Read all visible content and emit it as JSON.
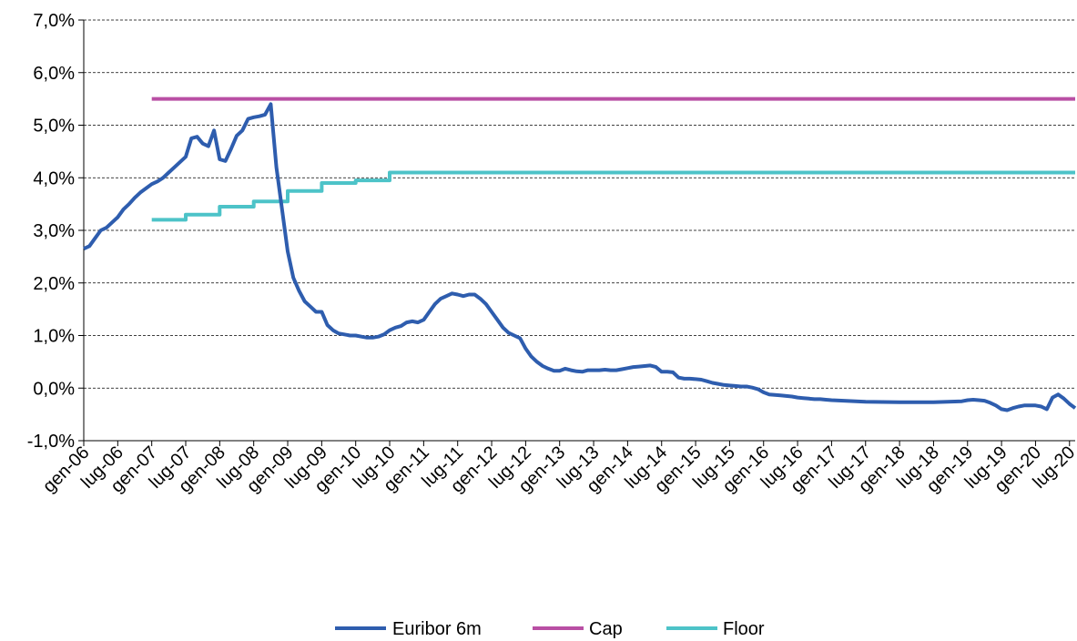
{
  "chart_data": {
    "type": "line",
    "title": "",
    "xlabel": "",
    "ylabel": "",
    "ylim": [
      -0.01,
      0.07
    ],
    "yticks": [
      {
        "value": -0.01,
        "label": "-1,0%"
      },
      {
        "value": 0.0,
        "label": "0,0%"
      },
      {
        "value": 0.01,
        "label": "1,0%"
      },
      {
        "value": 0.02,
        "label": "2,0%"
      },
      {
        "value": 0.03,
        "label": "3,0%"
      },
      {
        "value": 0.04,
        "label": "4,0%"
      },
      {
        "value": 0.05,
        "label": "5,0%"
      },
      {
        "value": 0.06,
        "label": "6,0%"
      },
      {
        "value": 0.07,
        "label": "7,0%"
      }
    ],
    "xlim": [
      "2006-01",
      "2020-08"
    ],
    "xticks": [
      {
        "value": "2006-01",
        "label": "gen-06"
      },
      {
        "value": "2006-07",
        "label": "lug-06"
      },
      {
        "value": "2007-01",
        "label": "gen-07"
      },
      {
        "value": "2007-07",
        "label": "lug-07"
      },
      {
        "value": "2008-01",
        "label": "gen-08"
      },
      {
        "value": "2008-07",
        "label": "lug-08"
      },
      {
        "value": "2009-01",
        "label": "gen-09"
      },
      {
        "value": "2009-07",
        "label": "lug-09"
      },
      {
        "value": "2010-01",
        "label": "gen-10"
      },
      {
        "value": "2010-07",
        "label": "lug-10"
      },
      {
        "value": "2011-01",
        "label": "gen-11"
      },
      {
        "value": "2011-07",
        "label": "lug-11"
      },
      {
        "value": "2012-01",
        "label": "gen-12"
      },
      {
        "value": "2012-07",
        "label": "lug-12"
      },
      {
        "value": "2013-01",
        "label": "gen-13"
      },
      {
        "value": "2013-07",
        "label": "lug-13"
      },
      {
        "value": "2014-01",
        "label": "gen-14"
      },
      {
        "value": "2014-07",
        "label": "lug-14"
      },
      {
        "value": "2015-01",
        "label": "gen-15"
      },
      {
        "value": "2015-07",
        "label": "lug-15"
      },
      {
        "value": "2016-01",
        "label": "gen-16"
      },
      {
        "value": "2016-07",
        "label": "lug-16"
      },
      {
        "value": "2017-01",
        "label": "gen-17"
      },
      {
        "value": "2017-07",
        "label": "lug-17"
      },
      {
        "value": "2018-01",
        "label": "gen-18"
      },
      {
        "value": "2018-07",
        "label": "lug-18"
      },
      {
        "value": "2019-01",
        "label": "gen-19"
      },
      {
        "value": "2019-07",
        "label": "lug-19"
      },
      {
        "value": "2020-01",
        "label": "gen-20"
      },
      {
        "value": "2020-07",
        "label": "lug-20"
      }
    ],
    "grid": {
      "horizontal": true,
      "style": "dashed"
    },
    "legend": {
      "position": "bottom-center"
    },
    "series": [
      {
        "name": "Euribor 6m",
        "color": "#2E5DAE",
        "points": [
          [
            "2006-01",
            0.0265
          ],
          [
            "2006-02",
            0.027
          ],
          [
            "2006-03",
            0.0285
          ],
          [
            "2006-04",
            0.03
          ],
          [
            "2006-05",
            0.0305
          ],
          [
            "2006-06",
            0.0315
          ],
          [
            "2006-07",
            0.0325
          ],
          [
            "2006-08",
            0.034
          ],
          [
            "2006-09",
            0.035
          ],
          [
            "2006-10",
            0.0362
          ],
          [
            "2006-11",
            0.0372
          ],
          [
            "2006-12",
            0.038
          ],
          [
            "2007-01",
            0.0388
          ],
          [
            "2007-02",
            0.0393
          ],
          [
            "2007-03",
            0.04
          ],
          [
            "2007-04",
            0.041
          ],
          [
            "2007-05",
            0.042
          ],
          [
            "2007-06",
            0.043
          ],
          [
            "2007-07",
            0.044
          ],
          [
            "2007-08",
            0.0475
          ],
          [
            "2007-09",
            0.0478
          ],
          [
            "2007-10",
            0.0465
          ],
          [
            "2007-11",
            0.046
          ],
          [
            "2007-12",
            0.049
          ],
          [
            "2008-01",
            0.0435
          ],
          [
            "2008-02",
            0.0432
          ],
          [
            "2008-03",
            0.0455
          ],
          [
            "2008-04",
            0.048
          ],
          [
            "2008-05",
            0.049
          ],
          [
            "2008-06",
            0.0512
          ],
          [
            "2008-07",
            0.0515
          ],
          [
            "2008-08",
            0.0517
          ],
          [
            "2008-09",
            0.052
          ],
          [
            "2008-10",
            0.054
          ],
          [
            "2008-11",
            0.042
          ],
          [
            "2008-12",
            0.034
          ],
          [
            "2009-01",
            0.026
          ],
          [
            "2009-02",
            0.021
          ],
          [
            "2009-03",
            0.0185
          ],
          [
            "2009-04",
            0.0165
          ],
          [
            "2009-05",
            0.0155
          ],
          [
            "2009-06",
            0.0145
          ],
          [
            "2009-07",
            0.0145
          ],
          [
            "2009-08",
            0.012
          ],
          [
            "2009-09",
            0.011
          ],
          [
            "2009-10",
            0.0104
          ],
          [
            "2009-11",
            0.0102
          ],
          [
            "2009-12",
            0.01
          ],
          [
            "2010-01",
            0.01
          ],
          [
            "2010-02",
            0.0098
          ],
          [
            "2010-03",
            0.0096
          ],
          [
            "2010-04",
            0.0096
          ],
          [
            "2010-05",
            0.0098
          ],
          [
            "2010-06",
            0.0102
          ],
          [
            "2010-07",
            0.011
          ],
          [
            "2010-08",
            0.0115
          ],
          [
            "2010-09",
            0.0118
          ],
          [
            "2010-10",
            0.0125
          ],
          [
            "2010-11",
            0.0127
          ],
          [
            "2010-12",
            0.0125
          ],
          [
            "2011-01",
            0.013
          ],
          [
            "2011-02",
            0.0145
          ],
          [
            "2011-03",
            0.016
          ],
          [
            "2011-04",
            0.017
          ],
          [
            "2011-05",
            0.0175
          ],
          [
            "2011-06",
            0.018
          ],
          [
            "2011-07",
            0.0178
          ],
          [
            "2011-08",
            0.0175
          ],
          [
            "2011-09",
            0.0178
          ],
          [
            "2011-10",
            0.0178
          ],
          [
            "2011-11",
            0.017
          ],
          [
            "2011-12",
            0.016
          ],
          [
            "2012-01",
            0.0145
          ],
          [
            "2012-02",
            0.013
          ],
          [
            "2012-03",
            0.0115
          ],
          [
            "2012-04",
            0.0105
          ],
          [
            "2012-05",
            0.01
          ],
          [
            "2012-06",
            0.0095
          ],
          [
            "2012-07",
            0.0075
          ],
          [
            "2012-08",
            0.006
          ],
          [
            "2012-09",
            0.005
          ],
          [
            "2012-10",
            0.0042
          ],
          [
            "2012-11",
            0.0037
          ],
          [
            "2012-12",
            0.0033
          ],
          [
            "2013-01",
            0.0033
          ],
          [
            "2013-02",
            0.0037
          ],
          [
            "2013-03",
            0.0034
          ],
          [
            "2013-04",
            0.0032
          ],
          [
            "2013-05",
            0.0031
          ],
          [
            "2013-06",
            0.0034
          ],
          [
            "2013-07",
            0.0034
          ],
          [
            "2013-08",
            0.0034
          ],
          [
            "2013-09",
            0.0035
          ],
          [
            "2013-10",
            0.0034
          ],
          [
            "2013-11",
            0.0034
          ],
          [
            "2013-12",
            0.0036
          ],
          [
            "2014-01",
            0.0038
          ],
          [
            "2014-02",
            0.004
          ],
          [
            "2014-03",
            0.0041
          ],
          [
            "2014-04",
            0.0042
          ],
          [
            "2014-05",
            0.0043
          ],
          [
            "2014-06",
            0.004
          ],
          [
            "2014-07",
            0.0031
          ],
          [
            "2014-08",
            0.0031
          ],
          [
            "2014-09",
            0.003
          ],
          [
            "2014-10",
            0.002
          ],
          [
            "2014-11",
            0.0018
          ],
          [
            "2014-12",
            0.0018
          ],
          [
            "2015-01",
            0.0017
          ],
          [
            "2015-02",
            0.0016
          ],
          [
            "2015-03",
            0.0013
          ],
          [
            "2015-04",
            0.001
          ],
          [
            "2015-05",
            0.0008
          ],
          [
            "2015-06",
            0.0006
          ],
          [
            "2015-07",
            0.0005
          ],
          [
            "2015-08",
            0.0004
          ],
          [
            "2015-09",
            0.0003
          ],
          [
            "2015-10",
            0.0003
          ],
          [
            "2015-11",
            0.0001
          ],
          [
            "2015-12",
            -0.0002
          ],
          [
            "2016-01",
            -0.0008
          ],
          [
            "2016-02",
            -0.0012
          ],
          [
            "2016-03",
            -0.0013
          ],
          [
            "2016-04",
            -0.0014
          ],
          [
            "2016-05",
            -0.0015
          ],
          [
            "2016-06",
            -0.0016
          ],
          [
            "2016-07",
            -0.0018
          ],
          [
            "2016-08",
            -0.0019
          ],
          [
            "2016-09",
            -0.002
          ],
          [
            "2016-10",
            -0.0021
          ],
          [
            "2016-11",
            -0.0021
          ],
          [
            "2016-12",
            -0.0022
          ],
          [
            "2017-01",
            -0.0023
          ],
          [
            "2017-07",
            -0.0026
          ],
          [
            "2018-01",
            -0.0027
          ],
          [
            "2018-07",
            -0.0027
          ],
          [
            "2018-12",
            -0.0025
          ],
          [
            "2019-01",
            -0.0023
          ],
          [
            "2019-02",
            -0.0022
          ],
          [
            "2019-03",
            -0.0023
          ],
          [
            "2019-04",
            -0.0024
          ],
          [
            "2019-05",
            -0.0028
          ],
          [
            "2019-06",
            -0.0033
          ],
          [
            "2019-07",
            -0.004
          ],
          [
            "2019-08",
            -0.0042
          ],
          [
            "2019-09",
            -0.0038
          ],
          [
            "2019-10",
            -0.0035
          ],
          [
            "2019-11",
            -0.0033
          ],
          [
            "2019-12",
            -0.0033
          ],
          [
            "2020-01",
            -0.0033
          ],
          [
            "2020-02",
            -0.0035
          ],
          [
            "2020-03",
            -0.004
          ],
          [
            "2020-04",
            -0.0018
          ],
          [
            "2020-05",
            -0.0012
          ],
          [
            "2020-06",
            -0.002
          ],
          [
            "2020-07",
            -0.003
          ],
          [
            "2020-08",
            -0.0038
          ]
        ]
      },
      {
        "name": "Cap",
        "color": "#B94FA4",
        "step": true,
        "points": [
          [
            "2007-01",
            0.055
          ],
          [
            "2020-08",
            0.055
          ]
        ]
      },
      {
        "name": "Floor",
        "color": "#4DC3C8",
        "step": true,
        "points": [
          [
            "2007-01",
            0.032
          ],
          [
            "2007-07",
            0.033
          ],
          [
            "2008-01",
            0.0345
          ],
          [
            "2008-07",
            0.0355
          ],
          [
            "2009-01",
            0.0375
          ],
          [
            "2009-07",
            0.039
          ],
          [
            "2010-01",
            0.0395
          ],
          [
            "2010-07",
            0.041
          ],
          [
            "2020-08",
            0.041
          ]
        ]
      }
    ]
  }
}
